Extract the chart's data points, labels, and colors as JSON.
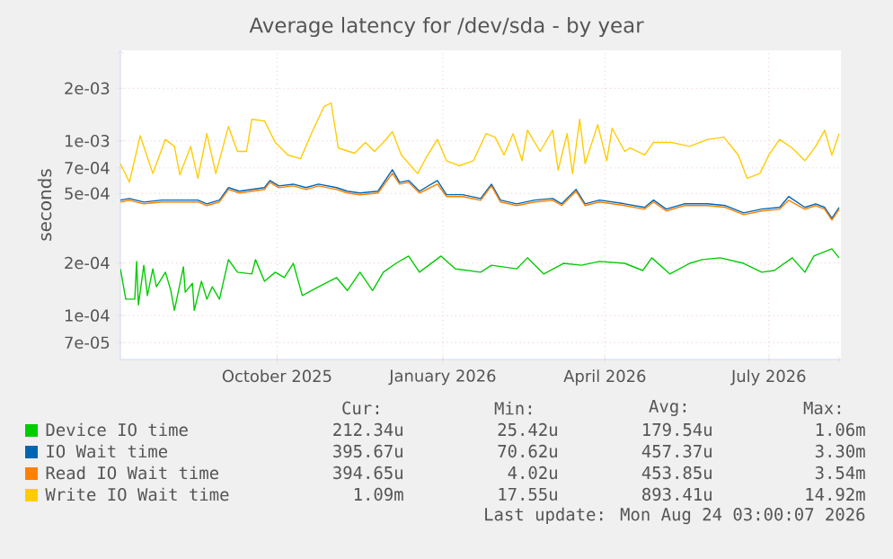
{
  "chart_data": {
    "type": "line",
    "title": "Average latency for /dev/sda - by year",
    "ylabel": "seconds",
    "log": true,
    "grid": true,
    "legend": "bottom",
    "xlim": [
      "2025-07-20",
      "2026-08-24"
    ],
    "xticks": [
      {
        "value": "2025-10-15",
        "label": "October 2025"
      },
      {
        "value": "2026-01-15",
        "label": "January 2026"
      },
      {
        "value": "2026-04-15",
        "label": "April 2026"
      },
      {
        "value": "2026-07-15",
        "label": "July 2026"
      }
    ],
    "ylim": [
      5.6e-05,
      0.0033
    ],
    "yticks": [
      {
        "value": 7e-05,
        "label": "7e-05"
      },
      {
        "value": 0.0001,
        "label": "1e-04"
      },
      {
        "value": 0.0002,
        "label": "2e-04"
      },
      {
        "value": 0.0005,
        "label": "5e-04"
      },
      {
        "value": 0.0007,
        "label": "7e-04"
      },
      {
        "value": 0.001,
        "label": "1e-03"
      },
      {
        "value": 0.002,
        "label": "2e-03"
      }
    ],
    "x": [
      "2025-07-20",
      "2025-07-25",
      "2025-08-02",
      "2025-08-12",
      "2025-08-22",
      "2025-09-01",
      "2025-09-06",
      "2025-09-13",
      "2025-09-18",
      "2025-09-24",
      "2025-10-01",
      "2025-10-08",
      "2025-10-11",
      "2025-10-16",
      "2025-10-24",
      "2025-10-31",
      "2025-11-07",
      "2025-11-17",
      "2025-11-23",
      "2025-11-30",
      "2025-12-10",
      "2025-12-18",
      "2025-12-22",
      "2025-12-27",
      "2026-01-02",
      "2026-01-12",
      "2026-01-17",
      "2026-01-26",
      "2026-02-05",
      "2026-02-11",
      "2026-02-16",
      "2026-02-25",
      "2026-03-07",
      "2026-03-17",
      "2026-03-22",
      "2026-03-30",
      "2026-04-04",
      "2026-04-12",
      "2026-04-26",
      "2026-05-07",
      "2026-05-12",
      "2026-05-19",
      "2026-05-29",
      "2026-06-11",
      "2026-06-21",
      "2026-07-01",
      "2026-07-11",
      "2026-07-21",
      "2026-07-26",
      "2026-08-04",
      "2026-08-10",
      "2026-08-15",
      "2026-08-19",
      "2026-08-23"
    ],
    "series": [
      {
        "name": "Device IO time",
        "color": "#00cc00",
        "x": [
          "2025-07-20",
          "2025-07-23",
          "2025-07-28",
          "2025-07-29",
          "2025-07-30",
          "2025-08-02",
          "2025-08-04",
          "2025-08-07",
          "2025-08-09",
          "2025-08-14",
          "2025-08-17",
          "2025-08-19",
          "2025-08-24",
          "2025-08-25",
          "2025-08-29",
          "2025-08-30",
          "2025-09-03",
          "2025-09-06",
          "2025-09-09",
          "2025-09-13",
          "2025-09-18",
          "2025-09-23",
          "2025-10-01",
          "2025-10-03",
          "2025-10-08",
          "2025-10-14",
          "2025-10-19",
          "2025-10-24",
          "2025-10-29",
          "2025-11-07",
          "2025-11-17",
          "2025-11-23",
          "2025-11-30",
          "2025-12-07",
          "2025-12-13",
          "2025-12-20",
          "2025-12-27",
          "2026-01-02",
          "2026-01-14",
          "2026-01-22",
          "2026-02-05",
          "2026-02-11",
          "2026-02-25",
          "2026-03-03",
          "2026-03-12",
          "2026-03-23",
          "2026-04-02",
          "2026-04-12",
          "2026-04-26",
          "2026-05-06",
          "2026-05-11",
          "2026-05-21",
          "2026-06-01",
          "2026-06-08",
          "2026-06-18",
          "2026-07-01",
          "2026-07-11",
          "2026-07-18",
          "2026-07-28",
          "2026-08-04",
          "2026-08-09",
          "2026-08-19",
          "2026-08-23"
        ],
        "values": [
          0.000185,
          0.000124,
          0.000124,
          0.000204,
          0.000115,
          0.000194,
          0.00013,
          0.000185,
          0.000146,
          0.000177,
          0.000139,
          0.000107,
          0.00019,
          0.000136,
          0.000153,
          0.000107,
          0.000157,
          0.000124,
          0.000146,
          0.000124,
          0.000209,
          0.000177,
          0.000173,
          0.000209,
          0.000157,
          0.000177,
          0.000165,
          0.000199,
          0.00013,
          0.000146,
          0.000165,
          0.000139,
          0.000177,
          0.000139,
          0.000177,
          0.000199,
          0.000219,
          0.000177,
          0.000219,
          0.000185,
          0.000177,
          0.000194,
          0.000185,
          0.000214,
          0.000173,
          0.000199,
          0.000194,
          0.000204,
          0.000199,
          0.000181,
          0.000214,
          0.000173,
          0.000199,
          0.000209,
          0.000214,
          0.000199,
          0.000177,
          0.000181,
          0.000214,
          0.000177,
          0.000219,
          0.000241,
          0.000214
        ]
      },
      {
        "name": "IO Wait time",
        "color": "#0066b3",
        "values": [
          0.000458,
          0.000468,
          0.000446,
          0.000458,
          0.000458,
          0.000458,
          0.000436,
          0.000458,
          0.00054,
          0.000515,
          0.000527,
          0.00054,
          0.000593,
          0.000552,
          0.000565,
          0.00054,
          0.000565,
          0.00054,
          0.000515,
          0.000503,
          0.000515,
          0.000684,
          0.000579,
          0.000593,
          0.000515,
          0.000593,
          0.000492,
          0.000492,
          0.000468,
          0.000565,
          0.000458,
          0.000436,
          0.000458,
          0.000468,
          0.000436,
          0.000527,
          0.000436,
          0.000458,
          0.000436,
          0.000416,
          0.000458,
          0.000407,
          0.000436,
          0.000436,
          0.000426,
          0.000387,
          0.000407,
          0.000416,
          0.00048,
          0.000416,
          0.000436,
          0.000416,
          0.00036,
          0.000416
        ]
      },
      {
        "name": "Read IO Wait time",
        "color": "#ff8000",
        "values": [
          0.000447,
          0.000457,
          0.000436,
          0.000447,
          0.000447,
          0.000447,
          0.000426,
          0.000447,
          0.000527,
          0.000503,
          0.000515,
          0.000527,
          0.000579,
          0.000539,
          0.000552,
          0.000527,
          0.000552,
          0.000527,
          0.000503,
          0.000491,
          0.000503,
          0.000652,
          0.000565,
          0.000579,
          0.000503,
          0.000565,
          0.00048,
          0.00048,
          0.000457,
          0.000552,
          0.000447,
          0.000426,
          0.000447,
          0.000457,
          0.000426,
          0.000515,
          0.000426,
          0.000447,
          0.000426,
          0.000406,
          0.000447,
          0.000397,
          0.000426,
          0.000426,
          0.000416,
          0.000378,
          0.000397,
          0.000406,
          0.000457,
          0.000406,
          0.000426,
          0.000406,
          0.000352,
          0.000406
        ]
      },
      {
        "name": "Write IO Wait time",
        "color": "#ffcc00",
        "x": [
          "2025-07-20",
          "2025-07-25",
          "2025-07-31",
          "2025-08-07",
          "2025-08-14",
          "2025-08-19",
          "2025-08-22",
          "2025-08-28",
          "2025-09-01",
          "2025-09-06",
          "2025-09-11",
          "2025-09-18",
          "2025-09-23",
          "2025-09-28",
          "2025-10-01",
          "2025-10-08",
          "2025-10-14",
          "2025-10-21",
          "2025-10-28",
          "2025-11-03",
          "2025-11-10",
          "2025-11-14",
          "2025-11-18",
          "2025-11-27",
          "2025-12-03",
          "2025-12-08",
          "2025-12-13",
          "2025-12-18",
          "2025-12-23",
          "2026-01-01",
          "2026-01-06",
          "2026-01-12",
          "2026-01-17",
          "2026-01-24",
          "2026-02-01",
          "2026-02-08",
          "2026-02-13",
          "2026-02-18",
          "2026-02-23",
          "2026-02-28",
          "2026-03-03",
          "2026-03-10",
          "2026-03-17",
          "2026-03-20",
          "2026-03-25",
          "2026-03-28",
          "2026-04-01",
          "2026-04-04",
          "2026-04-11",
          "2026-04-16",
          "2026-04-19",
          "2026-04-26",
          "2026-04-29",
          "2026-05-07",
          "2026-05-12",
          "2026-05-22",
          "2026-06-01",
          "2026-06-11",
          "2026-06-20",
          "2026-06-28",
          "2026-07-03",
          "2026-07-10",
          "2026-07-15",
          "2026-07-21",
          "2026-07-28",
          "2026-08-04",
          "2026-08-10",
          "2026-08-15",
          "2026-08-19",
          "2026-08-23"
        ],
        "values": [
          0.00074,
          0.00058,
          0.00107,
          0.00065,
          0.00102,
          0.00093,
          0.00064,
          0.00093,
          0.00061,
          0.0011,
          0.00065,
          0.00121,
          0.00087,
          0.00087,
          0.00133,
          0.0013,
          0.00098,
          0.00083,
          0.00079,
          0.0011,
          0.00157,
          0.00165,
          0.00091,
          0.00085,
          0.00098,
          0.00087,
          0.00098,
          0.00113,
          0.00083,
          0.00065,
          0.00081,
          0.00102,
          0.00077,
          0.00072,
          0.00077,
          0.0011,
          0.00105,
          0.00083,
          0.0011,
          0.00077,
          0.00115,
          0.00087,
          0.00115,
          0.00068,
          0.0011,
          0.00065,
          0.00133,
          0.00074,
          0.00124,
          0.00077,
          0.00118,
          0.00087,
          0.00091,
          0.00083,
          0.00098,
          0.00098,
          0.00093,
          0.00102,
          0.00105,
          0.00083,
          0.00061,
          0.00065,
          0.00083,
          0.00102,
          0.00091,
          0.00077,
          0.00093,
          0.00115,
          0.00083,
          0.0011
        ]
      }
    ],
    "annotations": [
      "Cur:",
      "Min:",
      "Avg:",
      "Max:",
      "212.34u",
      "25.42u",
      "179.54u",
      "1.06m",
      "395.67u",
      "70.62u",
      "457.37u",
      "3.30m",
      "394.65u",
      "4.02u",
      "453.85u",
      "3.54m",
      "1.09m",
      "17.55u",
      "893.41u",
      "14.92m",
      "Last update: Mon Aug 24 03:00:07 2026"
    ]
  }
}
